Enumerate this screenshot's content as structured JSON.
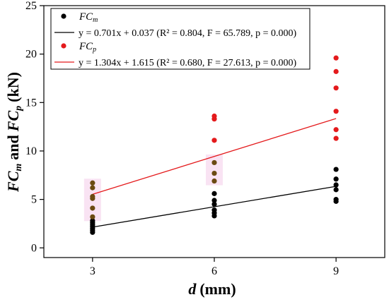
{
  "chart_data": {
    "type": "scatter",
    "xlabel_var": "d",
    "xlabel_unit": "(mm)",
    "ylabel_a": "FC",
    "ylabel_a_sub": "m",
    "ylabel_and": "and",
    "ylabel_b": "FC",
    "ylabel_b_sub": "p",
    "ylabel_unit": "(kN)",
    "xlim": [
      1.8,
      10.2
    ],
    "ylim": [
      -1,
      25
    ],
    "x_ticks": [
      "3",
      "6",
      "9"
    ],
    "y_ticks": [
      "0",
      "5",
      "10",
      "15",
      "20",
      "25"
    ],
    "grid": false,
    "legend_position": "top-left",
    "series": [
      {
        "legend_base": "FC",
        "legend_sub": "m",
        "color": "#000000",
        "points": [
          [
            3,
            1.6
          ],
          [
            3,
            1.8
          ],
          [
            3,
            2.0
          ],
          [
            3,
            2.2
          ],
          [
            3,
            2.4
          ],
          [
            3,
            2.6
          ],
          [
            3,
            2.8
          ],
          [
            6,
            3.3
          ],
          [
            6,
            3.6
          ],
          [
            6,
            3.9
          ],
          [
            6,
            4.5
          ],
          [
            6,
            4.9
          ],
          [
            6,
            5.6
          ],
          [
            9,
            4.8
          ],
          [
            9,
            5.0
          ],
          [
            9,
            6.0
          ],
          [
            9,
            6.5
          ],
          [
            9,
            7.1
          ],
          [
            9,
            8.1
          ]
        ],
        "fit_equation": "y = 0.701x + 0.037 (R² = 0.804, F = 65.789, p = 0.000)",
        "fit": {
          "slope": 0.701,
          "intercept": 0.037
        }
      },
      {
        "legend_base": "FC",
        "legend_sub": "p",
        "color": "#e41a1c",
        "points": [
          [
            3,
            3.2
          ],
          [
            3,
            4.1
          ],
          [
            3,
            5.1
          ],
          [
            3,
            5.3
          ],
          [
            3,
            6.2
          ],
          [
            3,
            6.7
          ],
          [
            6,
            6.9
          ],
          [
            6,
            7.7
          ],
          [
            6,
            8.8
          ],
          [
            6,
            11.1
          ],
          [
            6,
            13.3
          ],
          [
            6,
            13.6
          ],
          [
            9,
            11.3
          ],
          [
            9,
            12.2
          ],
          [
            9,
            14.1
          ],
          [
            9,
            16.5
          ],
          [
            9,
            18.2
          ],
          [
            9,
            19.6
          ]
        ],
        "fit_equation": "y = 1.304x + 1.615 (R² = 0.680, F = 27.613, p = 0.000)",
        "fit": {
          "slope": 1.304,
          "intercept": 1.615
        }
      }
    ]
  }
}
